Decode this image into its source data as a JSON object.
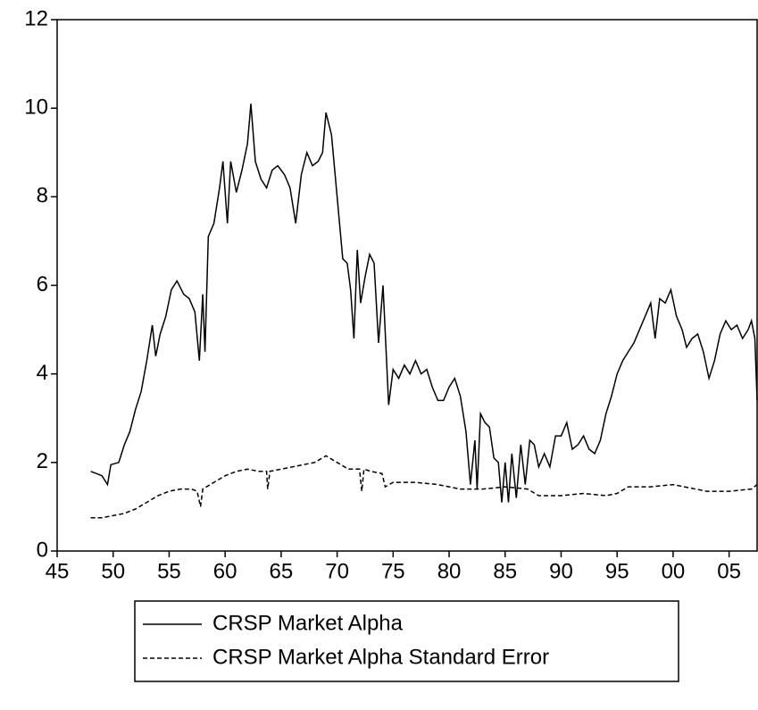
{
  "chart_data": {
    "type": "line",
    "xlim": [
      1945,
      2007.5
    ],
    "ylim": [
      0,
      12
    ],
    "xticks": [
      {
        "value": 1945,
        "label": "45"
      },
      {
        "value": 1950,
        "label": "50"
      },
      {
        "value": 1955,
        "label": "55"
      },
      {
        "value": 1960,
        "label": "60"
      },
      {
        "value": 1965,
        "label": "65"
      },
      {
        "value": 1970,
        "label": "70"
      },
      {
        "value": 1975,
        "label": "75"
      },
      {
        "value": 1980,
        "label": "80"
      },
      {
        "value": 1985,
        "label": "85"
      },
      {
        "value": 1990,
        "label": "90"
      },
      {
        "value": 1995,
        "label": "95"
      },
      {
        "value": 2000,
        "label": "00"
      },
      {
        "value": 2005,
        "label": "05"
      }
    ],
    "yticks": [
      0,
      2,
      4,
      6,
      8,
      10,
      12
    ],
    "series": [
      {
        "name": "CRSP Market Alpha",
        "color": "#000000",
        "dash": "solid",
        "x": [
          1948,
          1948.5,
          1949,
          1949.5,
          1949.8,
          1950.5,
          1951,
          1951.5,
          1952,
          1952.5,
          1953,
          1953.5,
          1953.8,
          1954.2,
          1954.7,
          1955.2,
          1955.7,
          1956.3,
          1956.8,
          1957.3,
          1957.7,
          1958,
          1958.2,
          1958.5,
          1959,
          1959.5,
          1959.8,
          1960.2,
          1960.5,
          1961,
          1961.5,
          1962,
          1962.3,
          1962.7,
          1963.2,
          1963.7,
          1964.2,
          1964.7,
          1965.3,
          1965.8,
          1966.3,
          1966.8,
          1967.3,
          1967.8,
          1968.3,
          1968.7,
          1969,
          1969.5,
          1970,
          1970.5,
          1970.9,
          1971.2,
          1971.5,
          1971.8,
          1972.1,
          1972.5,
          1972.9,
          1973.3,
          1973.7,
          1974.1,
          1974.6,
          1975,
          1975.5,
          1976,
          1976.5,
          1977,
          1977.5,
          1978,
          1978.5,
          1979,
          1979.5,
          1980,
          1980.5,
          1981,
          1981.5,
          1981.9,
          1982.3,
          1982.5,
          1982.8,
          1983.2,
          1983.6,
          1984,
          1984.4,
          1984.7,
          1985,
          1985.3,
          1985.6,
          1986,
          1986.4,
          1986.8,
          1987.2,
          1987.6,
          1988,
          1988.5,
          1989,
          1989.5,
          1990,
          1990.5,
          1991,
          1991.5,
          1992,
          1992.5,
          1993,
          1993.5,
          1994,
          1994.5,
          1995,
          1995.5,
          1996,
          1996.5,
          1997,
          1997.5,
          1998,
          1998.4,
          1998.8,
          1999.3,
          1999.8,
          2000.3,
          2000.8,
          2001.2,
          2001.7,
          2002.2,
          2002.7,
          2003.2,
          2003.7,
          2004.2,
          2004.7,
          2005.2,
          2005.7,
          2006.2,
          2006.7,
          2007.0,
          2007.3,
          2007.5
        ],
        "values": [
          1.8,
          1.75,
          1.7,
          1.5,
          1.95,
          2.0,
          2.4,
          2.7,
          3.2,
          3.6,
          4.3,
          5.1,
          4.4,
          4.9,
          5.3,
          5.9,
          6.1,
          5.8,
          5.7,
          5.4,
          4.3,
          5.8,
          4.5,
          7.1,
          7.4,
          8.2,
          8.8,
          7.4,
          8.8,
          8.1,
          8.6,
          9.2,
          10.1,
          8.8,
          8.4,
          8.2,
          8.6,
          8.7,
          8.5,
          8.2,
          7.4,
          8.5,
          9.0,
          8.7,
          8.8,
          9.0,
          9.9,
          9.4,
          8.0,
          6.6,
          6.5,
          5.9,
          4.8,
          6.8,
          5.6,
          6.2,
          6.7,
          6.5,
          4.7,
          6.0,
          3.3,
          4.1,
          3.9,
          4.2,
          4.0,
          4.3,
          4.0,
          4.1,
          3.7,
          3.4,
          3.4,
          3.7,
          3.9,
          3.5,
          2.7,
          1.5,
          2.5,
          1.4,
          3.1,
          2.9,
          2.8,
          2.1,
          2.0,
          1.1,
          2.0,
          1.1,
          2.2,
          1.2,
          2.4,
          1.5,
          2.5,
          2.4,
          1.9,
          2.2,
          1.9,
          2.6,
          2.6,
          2.9,
          2.3,
          2.4,
          2.6,
          2.3,
          2.2,
          2.5,
          3.1,
          3.5,
          4.0,
          4.3,
          4.5,
          4.7,
          5.0,
          5.3,
          5.6,
          4.8,
          5.7,
          5.6,
          5.9,
          5.3,
          5.0,
          4.6,
          4.8,
          4.9,
          4.5,
          3.9,
          4.3,
          4.9,
          5.2,
          5.0,
          5.1,
          4.8,
          5.0,
          5.2,
          4.8,
          3.4
        ]
      },
      {
        "name": "CRSP Market Alpha Standard Error",
        "color": "#000000",
        "dash": "dashed",
        "x": [
          1948,
          1949,
          1950,
          1951,
          1952,
          1953,
          1954,
          1955,
          1956,
          1957,
          1957.5,
          1957.8,
          1958,
          1959,
          1960,
          1961,
          1962,
          1963,
          1963.7,
          1963.8,
          1964,
          1965,
          1966,
          1967,
          1968,
          1969,
          1970,
          1971,
          1972,
          1972.2,
          1972.4,
          1973,
          1974,
          1974.3,
          1975,
          1977,
          1979,
          1980,
          1981,
          1983,
          1985,
          1987,
          1988,
          1990,
          1992,
          1994,
          1995,
          1996,
          1998,
          2000,
          2001,
          2003,
          2005,
          2007,
          2007.5
        ],
        "values": [
          0.75,
          0.75,
          0.8,
          0.85,
          0.95,
          1.1,
          1.25,
          1.35,
          1.4,
          1.4,
          1.35,
          1.0,
          1.4,
          1.55,
          1.7,
          1.8,
          1.85,
          1.8,
          1.8,
          1.4,
          1.8,
          1.85,
          1.9,
          1.95,
          2.0,
          2.15,
          2.0,
          1.85,
          1.85,
          1.35,
          1.85,
          1.8,
          1.75,
          1.45,
          1.55,
          1.55,
          1.5,
          1.45,
          1.4,
          1.4,
          1.45,
          1.4,
          1.25,
          1.25,
          1.3,
          1.25,
          1.3,
          1.45,
          1.45,
          1.5,
          1.45,
          1.35,
          1.35,
          1.4,
          1.5
        ]
      }
    ]
  }
}
